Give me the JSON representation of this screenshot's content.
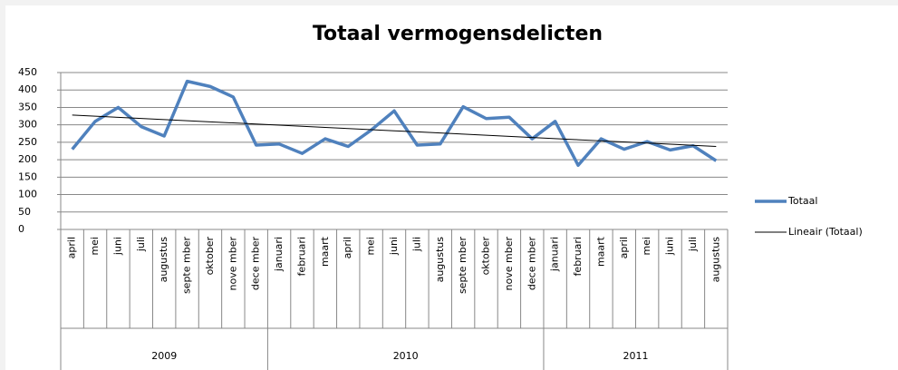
{
  "chart_data": {
    "type": "line",
    "title": "Totaal vermogensdelicten",
    "groups": [
      {
        "label": "2009",
        "months": [
          "april",
          "mei",
          "juni",
          "juli",
          "augustus",
          "septe mber",
          "oktober",
          "nove mber",
          "dece mber"
        ]
      },
      {
        "label": "2010",
        "months": [
          "januari",
          "februari",
          "maart",
          "april",
          "mei",
          "juni",
          "juli",
          "augustus",
          "septe mber",
          "oktober",
          "nove mber",
          "dece mber"
        ]
      },
      {
        "label": "2011",
        "months": [
          "januari",
          "februari",
          "maart",
          "april",
          "mei",
          "juni",
          "juli",
          "augustus"
        ]
      }
    ],
    "series": [
      {
        "name": "Totaal",
        "color": "#4f81bd",
        "values": [
          230,
          310,
          350,
          295,
          268,
          425,
          410,
          380,
          242,
          245,
          218,
          260,
          238,
          285,
          340,
          242,
          245,
          352,
          318,
          322,
          260,
          310,
          184,
          260,
          230,
          252,
          228,
          240,
          197
        ]
      },
      {
        "name": "Lineair (Totaal)",
        "color": "#000000",
        "values": [
          328,
          324.8,
          321.6,
          318.4,
          315.1,
          311.9,
          308.7,
          305.5,
          302.3,
          299.1,
          295.9,
          292.6,
          289.4,
          286.2,
          283,
          279.8,
          276.6,
          273.4,
          270.1,
          266.9,
          263.7,
          260.5,
          257.3,
          254.1,
          250.9,
          247.6,
          244.4,
          241.2,
          238
        ]
      }
    ],
    "ylim": [
      0,
      450
    ],
    "yticks": [
      0,
      50,
      100,
      150,
      200,
      250,
      300,
      350,
      400,
      450
    ],
    "grid": true,
    "legend": "right"
  }
}
